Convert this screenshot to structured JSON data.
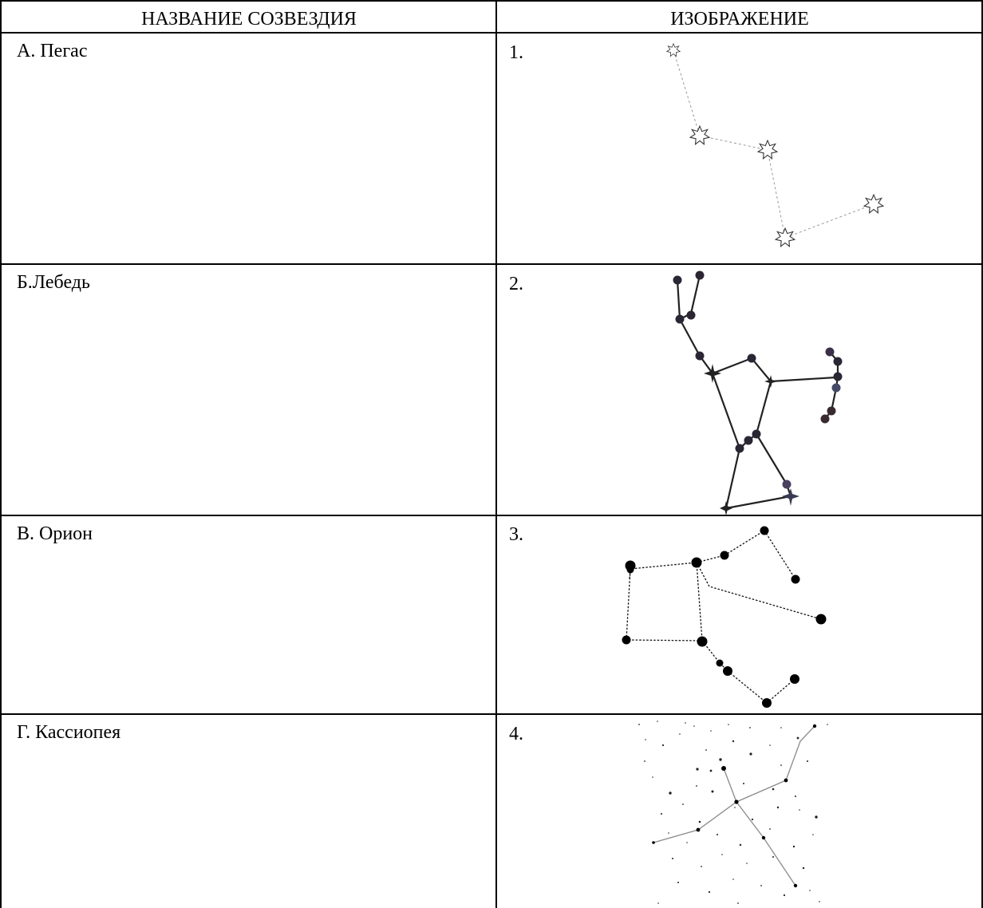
{
  "table": {
    "headers": {
      "name": "НАЗВАНИЕ СОЗВЕЗДИЯ",
      "image": "ИЗОБРАЖЕНИЕ"
    },
    "rows": [
      {
        "name": "А. Пегас",
        "number": "1."
      },
      {
        "name": "Б.Лебедь",
        "number": "2."
      },
      {
        "name": "В. Орион",
        "number": "3."
      },
      {
        "name": "Г. Кассиопея",
        "number": "4."
      }
    ]
  }
}
